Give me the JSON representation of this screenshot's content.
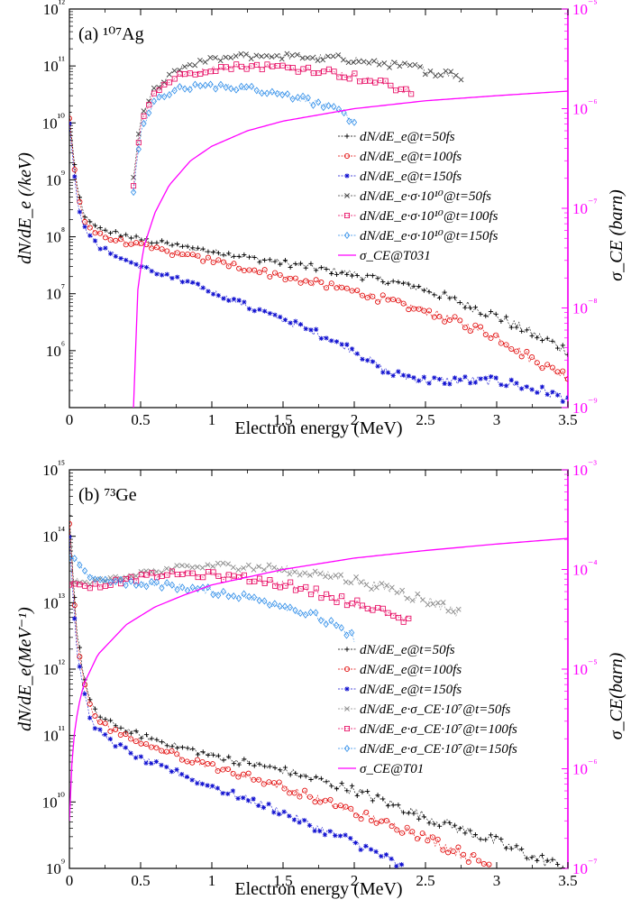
{
  "chart_data": [
    {
      "type": "line",
      "panel_label": "(a) ¹⁰⁷Ag",
      "xlabel": "Electron energy (MeV)",
      "ylabel": "dN/dE_e (/keV)",
      "y2label": "σ_CE (barn)",
      "xlim": [
        0,
        3.5
      ],
      "ylim": [
        100000,
        1000000000000
      ],
      "y2lim": [
        1e-09,
        1e-05
      ],
      "yscale": "log",
      "y2scale": "log",
      "xticks": [
        "0",
        "0.5",
        "1",
        "1.5",
        "2",
        "2.5",
        "3",
        "3.5"
      ],
      "yticks": [
        "10⁶",
        "10⁷",
        "10⁸",
        "10⁹",
        "10¹⁰",
        "10¹¹",
        "10¹²"
      ],
      "y2ticks": [
        "10⁻⁹",
        "10⁻⁸",
        "10⁻⁷",
        "10⁻⁶",
        "10⁻⁵"
      ],
      "legend_position": "middle-right",
      "series": [
        {
          "name": "dN/dE_e@t=50fs",
          "color": "#000000",
          "marker": "plus",
          "axis": "left",
          "x": [
            0.0,
            0.05,
            0.1,
            0.15,
            0.2,
            0.3,
            0.5,
            0.75,
            1.0,
            1.5,
            2.0,
            2.5,
            3.0,
            3.25,
            3.5
          ],
          "y": [
            15000000000.0,
            800000000.0,
            250000000.0,
            170000000.0,
            140000000.0,
            120000000.0,
            90000000.0,
            70000000.0,
            55000000.0,
            35000000.0,
            22000000.0,
            12000000.0,
            4000000.0,
            2000000.0,
            1000000.0
          ]
        },
        {
          "name": "dN/dE_e@t=100fs",
          "color": "#e00000",
          "marker": "circle",
          "axis": "left",
          "x": [
            0.0,
            0.05,
            0.1,
            0.15,
            0.2,
            0.3,
            0.5,
            0.75,
            1.0,
            1.5,
            2.0,
            2.5,
            3.0,
            3.25,
            3.5
          ],
          "y": [
            12000000000.0,
            700000000.0,
            200000000.0,
            140000000.0,
            110000000.0,
            90000000.0,
            70000000.0,
            50000000.0,
            38000000.0,
            20000000.0,
            11000000.0,
            5000000.0,
            1800000.0,
            700000.0,
            350000.0
          ]
        },
        {
          "name": "dN/dE_e@t=150fs",
          "color": "#1010d0",
          "marker": "star",
          "axis": "left",
          "x": [
            0.0,
            0.05,
            0.1,
            0.15,
            0.2,
            0.3,
            0.5,
            0.75,
            1.0,
            1.25,
            1.5,
            1.75,
            2.0,
            2.25,
            2.5,
            3.0,
            3.5
          ],
          "y": [
            10000000000.0,
            500000000.0,
            150000000.0,
            100000000.0,
            70000000.0,
            50000000.0,
            30000000.0,
            18000000.0,
            11000000.0,
            6000000.0,
            3500000.0,
            2000000.0,
            1000000.0,
            400000.0,
            300000.0,
            300000.0,
            150000.0
          ]
        },
        {
          "name": "dN/dE_e·σ·10¹⁰@t=50fs",
          "color": "#404040",
          "marker": "x",
          "axis": "left",
          "x": [
            0.45,
            0.5,
            0.6,
            0.75,
            1.0,
            1.25,
            1.5,
            1.75,
            2.0,
            2.25,
            2.5,
            2.75
          ],
          "y": [
            1000000000.0,
            12000000000.0,
            40000000000.0,
            85000000000.0,
            130000000000.0,
            150000000000.0,
            150000000000.0,
            140000000000.0,
            130000000000.0,
            110000000000.0,
            85000000000.0,
            65000000000.0
          ]
        },
        {
          "name": "dN/dE_e·σ·10¹⁰@t=100fs",
          "color": "#e6005c",
          "marker": "square",
          "axis": "left",
          "x": [
            0.45,
            0.5,
            0.6,
            0.75,
            1.0,
            1.25,
            1.5,
            1.75,
            2.0,
            2.25,
            2.4
          ],
          "y": [
            800000000.0,
            10000000000.0,
            35000000000.0,
            65000000000.0,
            90000000000.0,
            100000000000.0,
            95000000000.0,
            85000000000.0,
            65000000000.0,
            45000000000.0,
            35000000000.0
          ]
        },
        {
          "name": "dN/dE_e·σ·10¹⁰@t=150fs",
          "color": "#2b8be8",
          "marker": "diamond",
          "axis": "left",
          "x": [
            0.45,
            0.5,
            0.6,
            0.75,
            1.0,
            1.25,
            1.5,
            1.75,
            1.9,
            2.0
          ],
          "y": [
            600000000.0,
            7000000000.0,
            25000000000.0,
            40000000000.0,
            45000000000.0,
            40000000000.0,
            33000000000.0,
            22000000000.0,
            15000000000.0,
            11000000000.0
          ]
        },
        {
          "name": "σ_CE@T031",
          "color": "#ff00ff",
          "marker": "none",
          "axis": "right",
          "x": [
            0.45,
            0.48,
            0.52,
            0.6,
            0.7,
            0.85,
            1.0,
            1.25,
            1.5,
            2.0,
            2.5,
            3.0,
            3.5
          ],
          "y": [
            1e-09,
            1.5e-08,
            4e-08,
            9e-08,
            1.7e-07,
            3e-07,
            4.2e-07,
            6e-07,
            7.5e-07,
            1e-06,
            1.2e-06,
            1.35e-06,
            1.5e-06
          ]
        }
      ]
    },
    {
      "type": "line",
      "panel_label": "(b) ⁷³Ge",
      "xlabel": "Electron energy (MeV)",
      "ylabel": "dN/dE_e(MeV⁻¹)",
      "y2label": "σ_CE(barn)",
      "xlim": [
        0,
        3.5
      ],
      "ylim": [
        1000000000,
        1000000000000000
      ],
      "y2lim": [
        1e-07,
        0.001
      ],
      "yscale": "log",
      "y2scale": "log",
      "xticks": [
        "0",
        "0.5",
        "1",
        "1.5",
        "2",
        "2.5",
        "3",
        "3.5"
      ],
      "yticks": [
        "10⁹",
        "10¹⁰",
        "10¹¹",
        "10¹²",
        "10¹³",
        "10¹⁴",
        "10¹⁵"
      ],
      "y2ticks": [
        "10⁻⁷",
        "10⁻⁶",
        "10⁻⁵",
        "10⁻⁴",
        "10⁻³"
      ],
      "legend_position": "middle-right",
      "series": [
        {
          "name": "dN/dE_e@t=50fs",
          "color": "#000000",
          "marker": "plus",
          "axis": "left",
          "x": [
            0.0,
            0.05,
            0.1,
            0.15,
            0.2,
            0.3,
            0.5,
            0.75,
            1.0,
            1.5,
            2.0,
            2.5,
            3.0,
            3.25,
            3.5
          ],
          "y": [
            200000000000000.0,
            4000000000000.0,
            800000000000.0,
            300000000000.0,
            200000000000.0,
            150000000000.0,
            100000000000.0,
            70000000000.0,
            50000000000.0,
            30000000000.0,
            15000000000.0,
            6000000000.0,
            2500000000.0,
            1500000000.0,
            1000000000.0
          ]
        },
        {
          "name": "dN/dE_e@t=100fs",
          "color": "#e00000",
          "marker": "circle",
          "axis": "left",
          "x": [
            0.0,
            0.05,
            0.1,
            0.15,
            0.2,
            0.3,
            0.5,
            0.75,
            1.0,
            1.5,
            2.0,
            2.5,
            2.8,
            3.0
          ],
          "y": [
            150000000000000.0,
            3000000000000.0,
            700000000000.0,
            250000000000.0,
            170000000000.0,
            120000000000.0,
            80000000000.0,
            50000000000.0,
            35000000000.0,
            17000000000.0,
            7000000000.0,
            3000000000.0,
            1500000000.0,
            1000000000.0
          ]
        },
        {
          "name": "dN/dE_e@t=150fs",
          "color": "#1010d0",
          "marker": "star",
          "axis": "left",
          "x": [
            0.0,
            0.05,
            0.1,
            0.15,
            0.2,
            0.3,
            0.5,
            0.75,
            1.0,
            1.25,
            1.5,
            1.75,
            2.0,
            2.2,
            2.35
          ],
          "y": [
            100000000000000.0,
            2000000000000.0,
            500000000000.0,
            170000000000.0,
            120000000000.0,
            80000000000.0,
            45000000000.0,
            28000000000.0,
            17000000000.0,
            11000000000.0,
            7000000000.0,
            4000000000.0,
            2500000000.0,
            1500000000.0,
            1000000000.0
          ]
        },
        {
          "name": "dN/dE_e·σ_CE·10⁷@t=50fs",
          "color": "#8a8a8a",
          "marker": "x",
          "axis": "left",
          "x": [
            0.0,
            0.05,
            0.1,
            0.2,
            0.4,
            0.6,
            0.8,
            1.0,
            1.25,
            1.5,
            1.75,
            2.0,
            2.25,
            2.5,
            2.75
          ],
          "y": [
            20000000000000.0,
            22000000000000.0,
            20000000000000.0,
            21000000000000.0,
            25000000000000.0,
            30000000000000.0,
            34000000000000.0,
            36000000000000.0,
            35000000000000.0,
            32000000000000.0,
            27000000000000.0,
            22000000000000.0,
            16000000000000.0,
            11000000000000.0,
            7000000000000.0
          ]
        },
        {
          "name": "dN/dE_e·σ_CE·10⁷@t=100fs",
          "color": "#e6005c",
          "marker": "square",
          "axis": "left",
          "x": [
            0.0,
            0.05,
            0.1,
            0.2,
            0.4,
            0.6,
            0.8,
            1.0,
            1.25,
            1.5,
            1.75,
            2.0,
            2.25,
            2.4
          ],
          "y": [
            20000000000000.0,
            20000000000000.0,
            18000000000000.0,
            18000000000000.0,
            22000000000000.0,
            26000000000000.0,
            27000000000000.0,
            26000000000000.0,
            23000000000000.0,
            19000000000000.0,
            14000000000000.0,
            10000000000000.0,
            6500000000000.0,
            5000000000000.0
          ]
        },
        {
          "name": "dN/dE_e·σ_CE·10⁷@t=150fs",
          "color": "#2b8be8",
          "marker": "diamond",
          "axis": "left",
          "x": [
            0.0,
            0.05,
            0.1,
            0.15,
            0.2,
            0.4,
            0.6,
            0.8,
            1.0,
            1.25,
            1.5,
            1.75,
            2.0
          ],
          "y": [
            50000000000000.0,
            45000000000000.0,
            30000000000000.0,
            25000000000000.0,
            22000000000000.0,
            20000000000000.0,
            19000000000000.0,
            17000000000000.0,
            15000000000000.0,
            12000000000000.0,
            9000000000000.0,
            6000000000000.0,
            3000000000000.0
          ]
        },
        {
          "name": "σ_CE@T01",
          "color": "#ff00ff",
          "marker": "none",
          "axis": "right",
          "x": [
            0.0,
            0.01,
            0.03,
            0.06,
            0.1,
            0.2,
            0.4,
            0.6,
            0.8,
            1.0,
            1.5,
            2.0,
            2.5,
            3.0,
            3.5
          ],
          "y": [
            3e-07,
            8e-07,
            2e-06,
            4e-06,
            7e-06,
            1.4e-05,
            2.8e-05,
            4.2e-05,
            5.5e-05,
            7e-05,
            0.0001,
            0.00013,
            0.000155,
            0.00018,
            0.000205
          ]
        }
      ]
    }
  ],
  "colors": {
    "axis": "#000000",
    "right_axis": "#ff00ff"
  }
}
